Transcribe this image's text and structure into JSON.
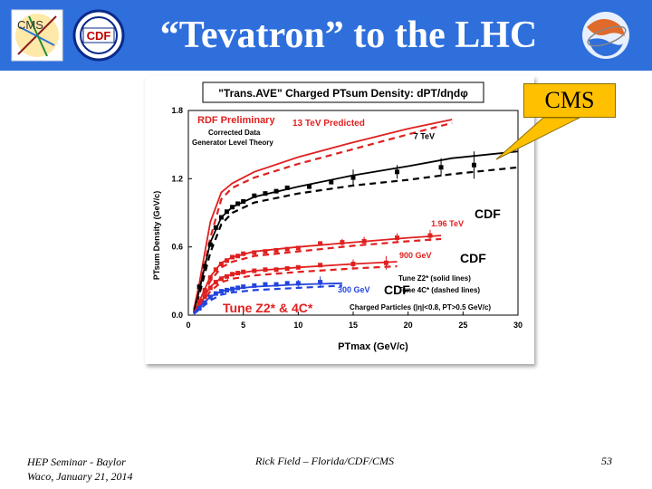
{
  "slide": {
    "title": "“Tevatron” to the LHC",
    "callout": "CMS",
    "footer": {
      "line1": "HEP Seminar - Baylor",
      "line2": "Waco, January 21, 2014",
      "center": "Rick Field – Florida/CDF/CMS",
      "page": "53"
    },
    "logos": {
      "left1": "CMS",
      "left2": "CDF",
      "right_icon": "globe-logo-icon"
    }
  },
  "colors": {
    "header": "#2e6fdc",
    "red": "#e02020",
    "blue": "#2244dd",
    "black": "#000000",
    "callout": "#ffc000",
    "label_red": "#e02020"
  },
  "chart_data": {
    "type": "line",
    "title": "\"Trans.AVE\" Charged PTsum Density: dPT/dηdφ",
    "xlabel": "PTmax (GeV/c)",
    "ylabel": "PTsum Density (GeV/c)",
    "xlim": [
      0,
      30
    ],
    "ylim": [
      0,
      1.8
    ],
    "xticks": [
      "0",
      "5",
      "10",
      "15",
      "20",
      "25",
      "30"
    ],
    "yticks": [
      "0.0",
      "0.6",
      "1.2",
      "1.8"
    ],
    "legend": {
      "line1": "RDF Preliminary",
      "line2": "Corrected Data",
      "line3": "Generator Level Theory"
    },
    "annotations": {
      "predicted": "13 TeV Predicted",
      "cdf1": "CDF",
      "cdf2": "CDF",
      "cdf3": "CDF",
      "tune": "Tune Z2* & 4C*",
      "tune_z2": "Tune Z2* (solid lines)",
      "tune_4c": "Tune 4C* (dashed lines)",
      "particles": "Charged Particles (|η|<0.8, PT>0.5 GeV/c)"
    },
    "series": [
      {
        "name": "13 TeV Predicted",
        "color": "#e02020",
        "line": {
          "x": [
            0.5,
            1,
            2,
            3,
            4,
            6,
            10,
            15,
            20,
            24
          ],
          "y": [
            0.05,
            0.28,
            0.82,
            1.08,
            1.16,
            1.26,
            1.39,
            1.52,
            1.64,
            1.72
          ]
        },
        "dashed": {
          "x": [
            0.5,
            1,
            2,
            3,
            4,
            6,
            10,
            15,
            20,
            24
          ],
          "y": [
            0.05,
            0.22,
            0.68,
            1.02,
            1.12,
            1.21,
            1.33,
            1.46,
            1.59,
            1.69
          ]
        }
      },
      {
        "name": "7 TeV",
        "color": "#000000",
        "points": {
          "x": [
            1,
            1.5,
            2,
            2.5,
            3,
            3.5,
            4,
            4.5,
            5,
            6,
            7,
            8,
            9,
            11,
            13,
            15,
            19,
            23,
            26
          ],
          "y": [
            0.25,
            0.43,
            0.62,
            0.77,
            0.86,
            0.91,
            0.95,
            0.98,
            1.0,
            1.05,
            1.07,
            1.09,
            1.12,
            1.13,
            1.17,
            1.21,
            1.26,
            1.3,
            1.32
          ]
        },
        "errors": [
          0,
          0,
          0,
          0,
          0,
          0,
          0,
          0,
          0,
          0,
          0,
          0,
          0,
          0,
          0,
          0.07,
          0.06,
          0.08,
          0.12
        ],
        "line": {
          "x": [
            0.5,
            1,
            2,
            3,
            4,
            6,
            10,
            15,
            20,
            24,
            30
          ],
          "y": [
            0.03,
            0.22,
            0.64,
            0.86,
            0.95,
            1.04,
            1.13,
            1.23,
            1.31,
            1.38,
            1.44
          ]
        },
        "dashed": {
          "x": [
            0.5,
            1,
            2,
            3,
            4,
            6,
            10,
            15,
            20,
            24,
            30
          ],
          "y": [
            0.02,
            0.18,
            0.55,
            0.8,
            0.9,
            0.99,
            1.07,
            1.14,
            1.19,
            1.24,
            1.3
          ]
        }
      },
      {
        "name": "1.96 TeV",
        "color": "#e02020",
        "points": {
          "x": [
            1,
            1.5,
            2,
            2.5,
            3,
            3.5,
            4,
            4.5,
            5,
            6,
            7,
            8,
            9,
            10,
            12,
            14,
            16,
            19,
            22
          ],
          "y": [
            0.12,
            0.22,
            0.33,
            0.4,
            0.45,
            0.48,
            0.51,
            0.52,
            0.54,
            0.55,
            0.56,
            0.57,
            0.58,
            0.59,
            0.63,
            0.64,
            0.65,
            0.68,
            0.7
          ]
        },
        "errors": [
          0,
          0,
          0,
          0,
          0,
          0,
          0,
          0,
          0,
          0,
          0,
          0,
          0,
          0,
          0,
          0.03,
          0.04,
          0.04,
          0.05
        ],
        "line": {
          "x": [
            0.5,
            1,
            2,
            3,
            4,
            6,
            10,
            15,
            20,
            23
          ],
          "y": [
            0.02,
            0.12,
            0.34,
            0.46,
            0.51,
            0.56,
            0.6,
            0.64,
            0.68,
            0.7
          ]
        },
        "dashed": {
          "x": [
            0.5,
            1,
            2,
            3,
            4,
            6,
            10,
            15,
            20,
            23
          ],
          "y": [
            0.01,
            0.1,
            0.3,
            0.42,
            0.47,
            0.52,
            0.56,
            0.61,
            0.65,
            0.67
          ]
        }
      },
      {
        "name": "900 GeV",
        "color": "#e02020",
        "points": {
          "x": [
            1,
            1.5,
            2,
            2.5,
            3,
            3.5,
            4,
            4.5,
            5,
            6,
            7,
            8,
            9,
            10,
            12,
            15,
            18
          ],
          "y": [
            0.08,
            0.16,
            0.24,
            0.29,
            0.32,
            0.34,
            0.36,
            0.37,
            0.38,
            0.39,
            0.4,
            0.4,
            0.41,
            0.42,
            0.44,
            0.45,
            0.46
          ]
        },
        "errors": [
          0,
          0,
          0,
          0,
          0,
          0,
          0,
          0,
          0,
          0,
          0,
          0,
          0,
          0,
          0,
          0.04,
          0.06
        ],
        "line": {
          "x": [
            0.5,
            1,
            2,
            3,
            4,
            6,
            10,
            15,
            19
          ],
          "y": [
            0.02,
            0.09,
            0.25,
            0.33,
            0.36,
            0.39,
            0.42,
            0.45,
            0.47
          ]
        },
        "dashed": {
          "x": [
            0.5,
            1,
            2,
            3,
            4,
            6,
            10,
            15,
            19
          ],
          "y": [
            0.01,
            0.07,
            0.21,
            0.29,
            0.32,
            0.35,
            0.38,
            0.41,
            0.43
          ]
        }
      },
      {
        "name": "300 GeV",
        "color": "#2244dd",
        "points": {
          "x": [
            1,
            1.5,
            2,
            2.5,
            3,
            3.5,
            4,
            4.5,
            5,
            6,
            7,
            8,
            9,
            10,
            12
          ],
          "y": [
            0.06,
            0.11,
            0.16,
            0.19,
            0.21,
            0.22,
            0.23,
            0.24,
            0.25,
            0.26,
            0.27,
            0.27,
            0.28,
            0.28,
            0.29
          ]
        },
        "errors": [
          0,
          0,
          0,
          0,
          0,
          0,
          0,
          0,
          0,
          0,
          0,
          0,
          0,
          0.03,
          0.05
        ],
        "line": {
          "x": [
            0.5,
            1,
            2,
            3,
            4,
            6,
            10,
            14
          ],
          "y": [
            0.02,
            0.07,
            0.16,
            0.21,
            0.23,
            0.25,
            0.27,
            0.28
          ]
        },
        "dashed": {
          "x": [
            0.5,
            1,
            2,
            3,
            4,
            6,
            10,
            14
          ],
          "y": [
            0.01,
            0.05,
            0.13,
            0.18,
            0.2,
            0.22,
            0.24,
            0.26
          ]
        }
      }
    ]
  }
}
